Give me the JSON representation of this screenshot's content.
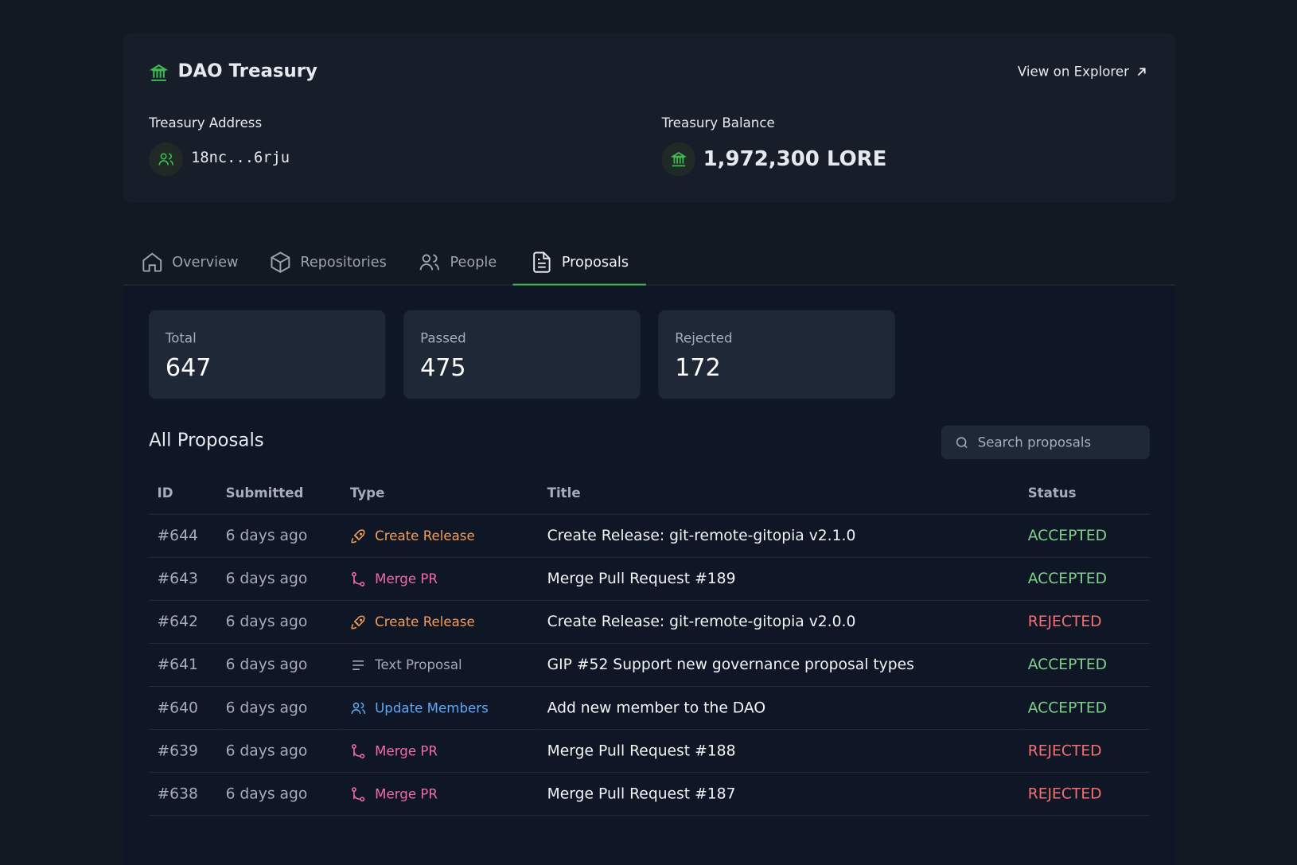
{
  "header": {
    "title": "DAO Treasury",
    "explorer_link": "View on Explorer",
    "address_label": "Treasury Address",
    "address": "18nc...6rju",
    "balance_label": "Treasury Balance",
    "balance": "1,972,300 LORE"
  },
  "tabs": [
    "Overview",
    "Repositories",
    "People",
    "Proposals"
  ],
  "stats": [
    {
      "label": "Total",
      "value": 647
    },
    {
      "label": "Passed",
      "value": 475
    },
    {
      "label": "Rejected",
      "value": 172
    }
  ],
  "proposals": {
    "title": "All Proposals",
    "search_placeholder": "Search proposals",
    "columns": [
      "ID",
      "Submitted",
      "Type",
      "Title",
      "Status"
    ],
    "rows": [
      {
        "id": "#644",
        "submitted": "6 days ago",
        "type": "Create Release",
        "type_color": "#f59e5b",
        "title": "Create Release: git-remote-gitopia v2.1.0",
        "status": "ACCEPTED",
        "status_color": "#7ed08a"
      },
      {
        "id": "#643",
        "submitted": "6 days ago",
        "type": "Merge PR",
        "type_color": "#f06ba8",
        "title": "Merge Pull Request #189",
        "status": "ACCEPTED",
        "status_color": "#7ed08a"
      },
      {
        "id": "#642",
        "submitted": "6 days ago",
        "type": "Create Release",
        "type_color": "#f59e5b",
        "title": "Create Release: git-remote-gitopia v2.0.0",
        "status": "REJECTED",
        "status_color": "#f47171"
      },
      {
        "id": "#641",
        "submitted": "6 days ago",
        "type": "Text Proposal",
        "type_color": "#a3a9b3",
        "title": "GIP #52 Support new governance proposal types",
        "status": "ACCEPTED",
        "status_color": "#7ed08a"
      },
      {
        "id": "#640",
        "submitted": "6 days ago",
        "type": "Update Members",
        "type_color": "#5fa8f5",
        "title": "Add new member to the DAO",
        "status": "ACCEPTED",
        "status_color": "#7ed08a"
      },
      {
        "id": "#639",
        "submitted": "6 days ago",
        "type": "Merge PR",
        "type_color": "#f06ba8",
        "title": "Merge Pull Request #188",
        "status": "REJECTED",
        "status_color": "#f47171"
      },
      {
        "id": "#638",
        "submitted": "6 days ago",
        "type": "Merge PR",
        "type_color": "#f06ba8",
        "title": "Merge Pull Request #187",
        "status": "REJECTED",
        "status_color": "#f47171"
      }
    ]
  }
}
